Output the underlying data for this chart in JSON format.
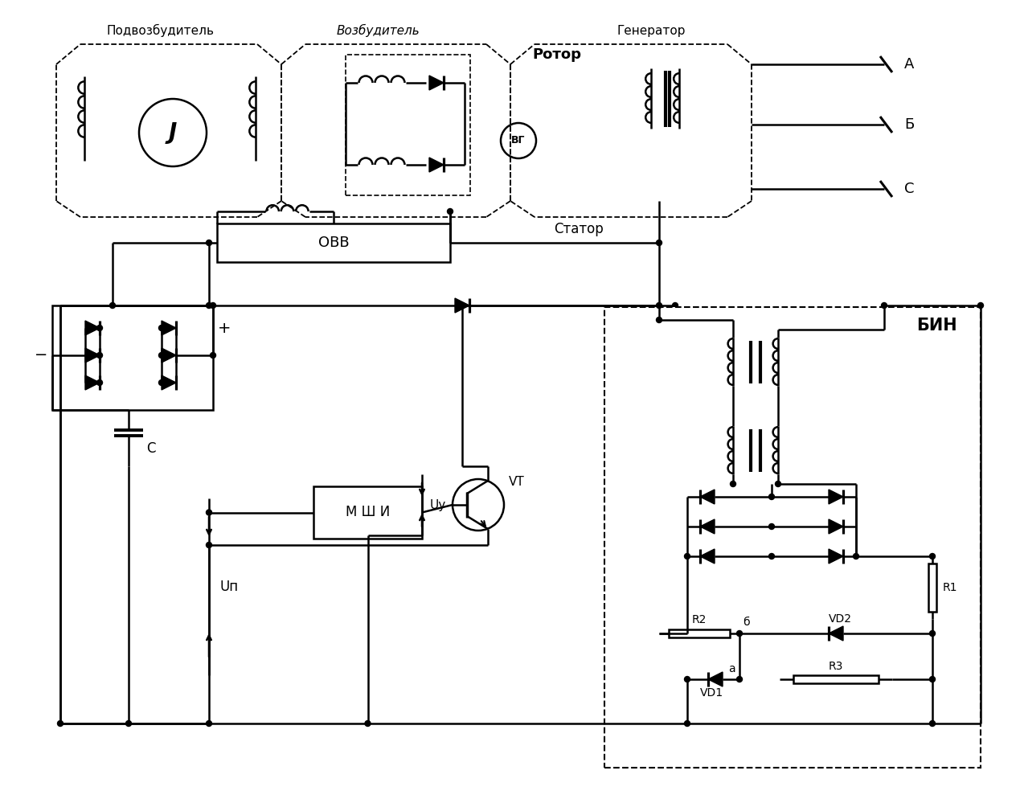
{
  "bg_color": "#ffffff",
  "line_color": "#000000",
  "labels": {
    "podvozbuditel": "Подвозбудитель",
    "vozbuditel": "Возбудитель",
    "generator": "Генератор",
    "rotor": "Ротор",
    "stator": "Статор",
    "ovv": "ОВВ",
    "bin": "БИН",
    "mshi": "М Ш И",
    "vt": "VT",
    "vg": "ВГ",
    "c_cap": "С",
    "up": "Uп",
    "uy": "Uу",
    "r1": "R1",
    "r2": "R2",
    "r3": "R3",
    "vd1": "VD1",
    "vd2": "VD2",
    "a_pt": "а",
    "b_pt": "б",
    "a_out": "А",
    "b_out": "Б",
    "c_out": "С",
    "minus": "−",
    "plus": "+",
    "j_sym": "J"
  }
}
